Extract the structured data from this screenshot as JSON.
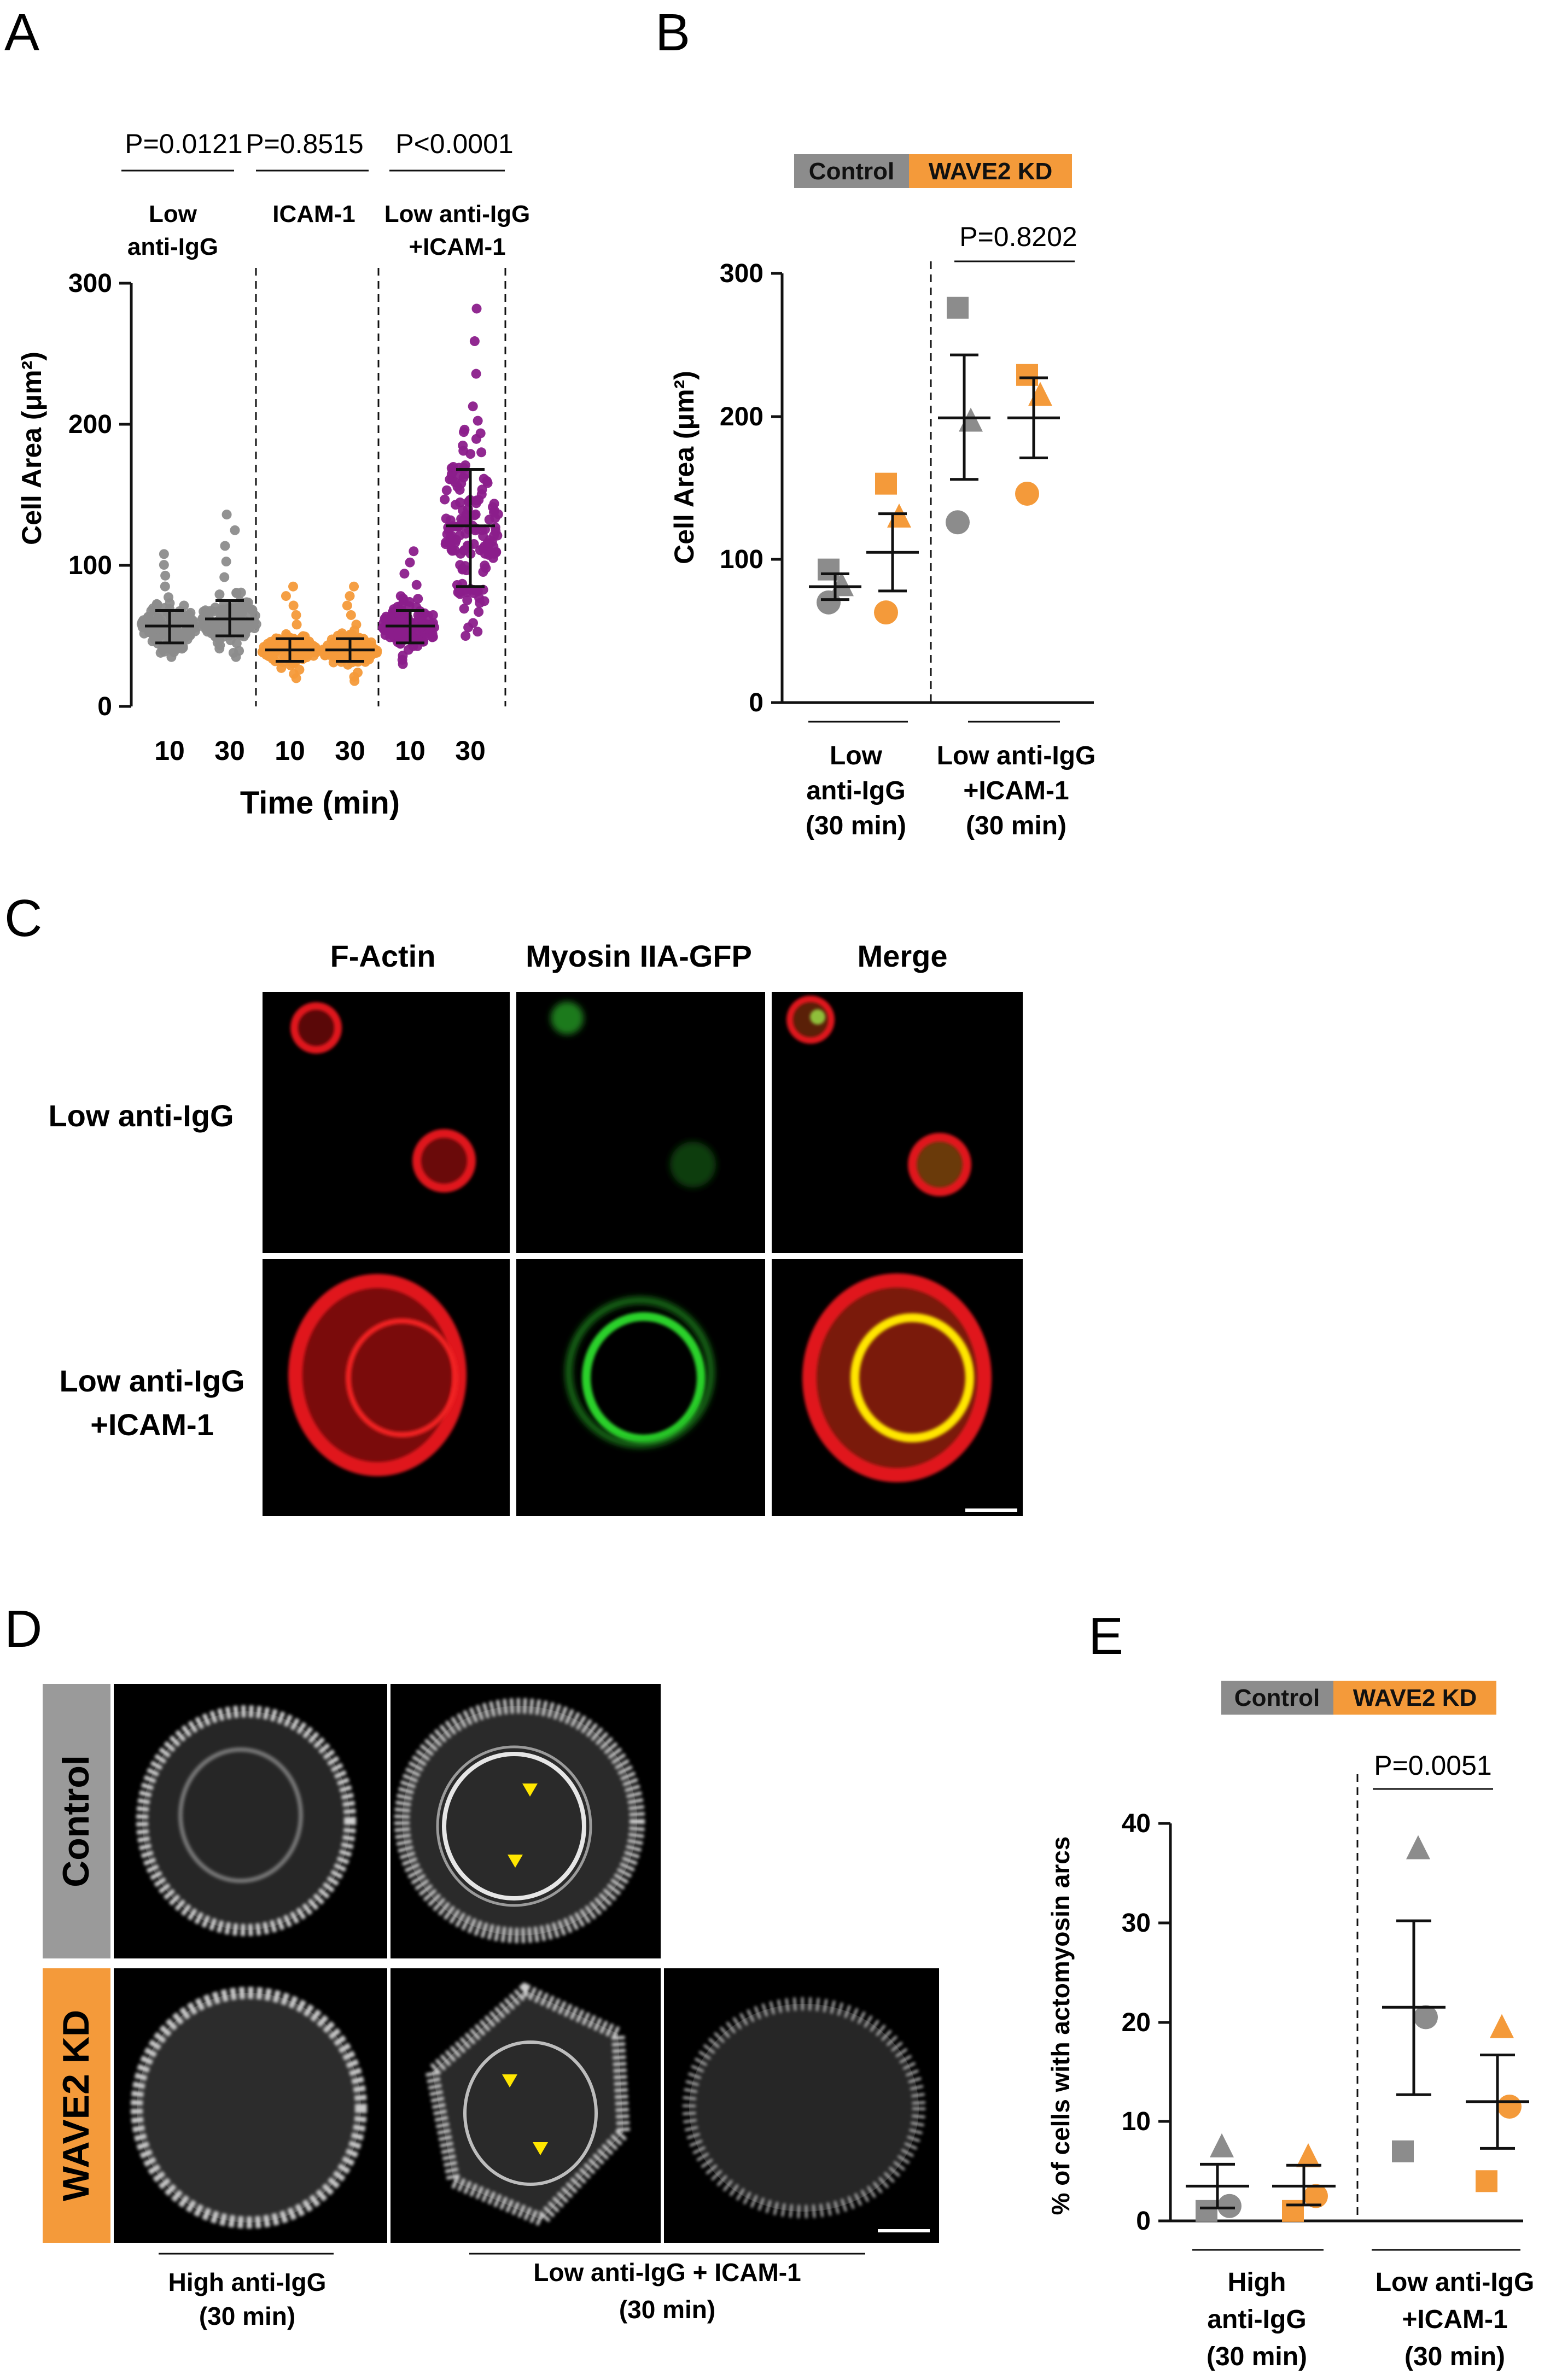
{
  "colors": {
    "gray": "#8C8C8C",
    "orange": "#F49A3A",
    "purple": "#8B1E8B",
    "yellow": "#FFE600",
    "red": "#E0161D",
    "green": "#2BD12B"
  },
  "panels": {
    "a": {
      "letter": "A",
      "pvals": [
        "P=0.0121",
        "P=0.8515",
        "P<0.0001"
      ],
      "groups": {
        "g1": [
          "Low",
          "anti-IgG"
        ],
        "g2": [
          "ICAM-1"
        ],
        "g3": [
          "Low anti-IgG",
          "+ICAM-1"
        ]
      }
    },
    "b": {
      "letter": "B",
      "pval": "P=0.8202",
      "groups": {
        "g1": [
          "Low",
          "anti-IgG",
          "(30 min)"
        ],
        "g2": [
          "Low anti-IgG",
          "+ICAM-1",
          "(30 min)"
        ]
      }
    },
    "c": {
      "letter": "C",
      "columns": [
        "F-Actin",
        "Myosin IIA-GFP",
        "Merge"
      ],
      "rows": {
        "r1": [
          "Low anti-IgG"
        ],
        "r2": [
          "Low anti-IgG",
          "+ICAM-1"
        ]
      }
    },
    "d": {
      "letter": "D",
      "rows": [
        "Control",
        "WAVE2 KD"
      ],
      "groups": {
        "g1": [
          "High anti-IgG",
          "(30 min)"
        ],
        "g2": [
          "Low anti-IgG + ICAM-1",
          "(30 min)"
        ]
      }
    },
    "e": {
      "letter": "E",
      "pval": "P=0.0051",
      "groups": {
        "g1": [
          "High",
          "anti-IgG",
          "(30 min)"
        ],
        "g2": [
          "Low anti-IgG",
          "+ICAM-1",
          "(30 min)"
        ]
      }
    }
  },
  "legend": {
    "control": "Control",
    "kd": "WAVE2 KD"
  },
  "chart_data": [
    {
      "id": "A",
      "type": "scatter",
      "ylabel": "Cell Area (μm²)",
      "xlabel": "Time (min)",
      "ylim": [
        0,
        300
      ],
      "yticks": [
        "0",
        "100",
        "200",
        "300"
      ],
      "categories": [
        "10",
        "30",
        "10",
        "30",
        "10",
        "30"
      ],
      "series": [
        {
          "name": "Low anti-IgG 10 min",
          "color": "gray",
          "mean": 57,
          "sd_low": 45,
          "sd_high": 68,
          "range": [
            35,
            108
          ]
        },
        {
          "name": "Low anti-IgG 30 min",
          "color": "gray",
          "mean": 62,
          "sd_low": 50,
          "sd_high": 75,
          "range": [
            35,
            136
          ]
        },
        {
          "name": "ICAM-1 10 min",
          "color": "orange",
          "mean": 40,
          "sd_low": 32,
          "sd_high": 48,
          "range": [
            20,
            85
          ]
        },
        {
          "name": "ICAM-1 30 min",
          "color": "orange",
          "mean": 40,
          "sd_low": 32,
          "sd_high": 48,
          "range": [
            18,
            85
          ]
        },
        {
          "name": "Low anti-IgG +ICAM-1 10 min",
          "color": "purple",
          "mean": 57,
          "sd_low": 45,
          "sd_high": 68,
          "range": [
            30,
            110
          ]
        },
        {
          "name": "Low anti-IgG +ICAM-1 30 min",
          "color": "purple",
          "mean": 128,
          "sd_low": 85,
          "sd_high": 168,
          "range": [
            50,
            282
          ]
        }
      ]
    },
    {
      "id": "B",
      "type": "scatter",
      "ylabel": "Cell Area (μm²)",
      "ylim": [
        0,
        300
      ],
      "yticks": [
        "0",
        "100",
        "200",
        "300"
      ],
      "series": [
        {
          "name": "Control",
          "group": "Low anti-IgG (30 min)",
          "mean": 81,
          "sem_low": 72,
          "sem_high": 90,
          "points": [
            {
              "marker": "square",
              "value": 93
            },
            {
              "marker": "triangle",
              "value": 82
            },
            {
              "marker": "circle",
              "value": 70
            }
          ]
        },
        {
          "name": "WAVE2 KD",
          "group": "Low anti-IgG (30 min)",
          "mean": 105,
          "sem_low": 78,
          "sem_high": 132,
          "points": [
            {
              "marker": "square",
              "value": 153
            },
            {
              "marker": "triangle",
              "value": 130
            },
            {
              "marker": "circle",
              "value": 63
            }
          ]
        },
        {
          "name": "Control",
          "group": "Low anti-IgG +ICAM-1 (30 min)",
          "mean": 199,
          "sem_low": 156,
          "sem_high": 243,
          "points": [
            {
              "marker": "square",
              "value": 276
            },
            {
              "marker": "triangle",
              "value": 197
            },
            {
              "marker": "circle",
              "value": 126
            }
          ]
        },
        {
          "name": "WAVE2 KD",
          "group": "Low anti-IgG +ICAM-1 (30 min)",
          "mean": 199,
          "sem_low": 171,
          "sem_high": 227,
          "points": [
            {
              "marker": "square",
              "value": 229
            },
            {
              "marker": "triangle",
              "value": 215
            },
            {
              "marker": "circle",
              "value": 146
            }
          ]
        }
      ]
    },
    {
      "id": "E",
      "type": "scatter",
      "ylabel": "% of cells with actomyosin arcs",
      "ylim": [
        0,
        40
      ],
      "yticks": [
        "0",
        "10",
        "20",
        "30",
        "40"
      ],
      "series": [
        {
          "name": "Control",
          "group": "High anti-IgG (30 min)",
          "mean": 3.5,
          "sem_low": 1.3,
          "sem_high": 5.7,
          "points": [
            {
              "marker": "triangle",
              "value": 7.5
            },
            {
              "marker": "circle",
              "value": 1.5
            },
            {
              "marker": "square",
              "value": 1.0
            }
          ]
        },
        {
          "name": "WAVE2 KD",
          "group": "High anti-IgG (30 min)",
          "mean": 3.5,
          "sem_low": 1.6,
          "sem_high": 5.6,
          "points": [
            {
              "marker": "triangle",
              "value": 6.5
            },
            {
              "marker": "circle",
              "value": 2.5
            },
            {
              "marker": "square",
              "value": 1.0
            }
          ]
        },
        {
          "name": "Control",
          "group": "Low anti-IgG +ICAM-1 (30 min)",
          "mean": 21.5,
          "sem_low": 12.7,
          "sem_high": 30.2,
          "points": [
            {
              "marker": "triangle",
              "value": 37.5
            },
            {
              "marker": "circle",
              "value": 20.5
            },
            {
              "marker": "square",
              "value": 7.0
            }
          ]
        },
        {
          "name": "WAVE2 KD",
          "group": "Low anti-IgG +ICAM-1 (30 min)",
          "mean": 12.0,
          "sem_low": 7.3,
          "sem_high": 16.7,
          "points": [
            {
              "marker": "triangle",
              "value": 19.5
            },
            {
              "marker": "circle",
              "value": 11.5
            },
            {
              "marker": "square",
              "value": 4.0
            }
          ]
        }
      ]
    }
  ]
}
